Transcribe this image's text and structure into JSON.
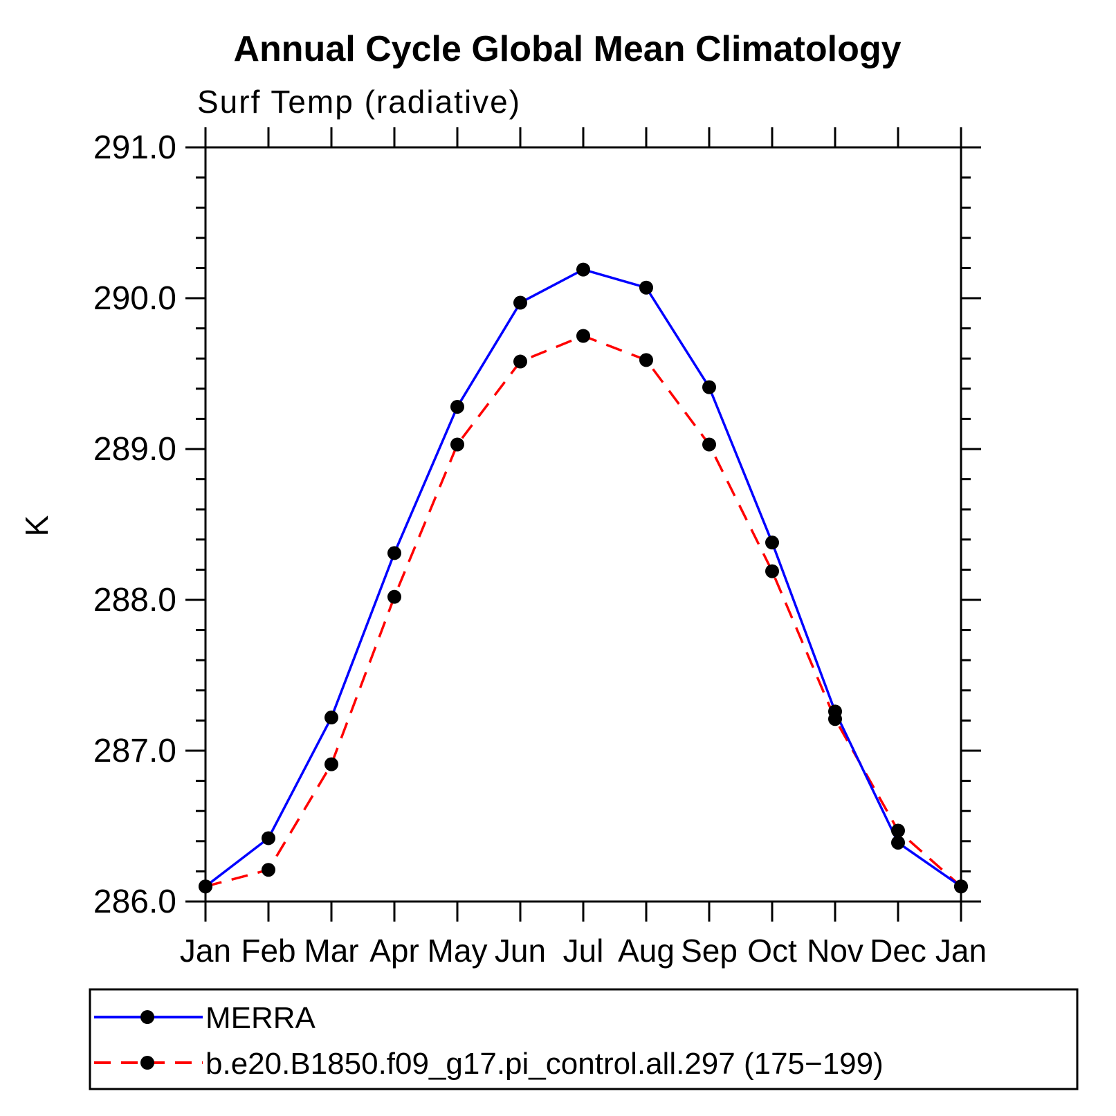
{
  "chart_data": {
    "type": "line",
    "title": "Annual Cycle Global Mean Climatology",
    "subtitle": "Surf Temp (radiative)",
    "ylabel": "K",
    "categories": [
      "Jan",
      "Feb",
      "Mar",
      "Apr",
      "May",
      "Jun",
      "Jul",
      "Aug",
      "Sep",
      "Oct",
      "Nov",
      "Dec",
      "Jan"
    ],
    "ylim": [
      286.0,
      291.0
    ],
    "y_major_ticks": [
      286.0,
      287.0,
      288.0,
      289.0,
      290.0,
      291.0
    ],
    "y_tick_labels": [
      "286.0",
      "287.0",
      "288.0",
      "289.0",
      "290.0",
      "291.0"
    ],
    "y_minor_step": 0.2,
    "grid": false,
    "legend_position": "bottom-left box",
    "series": [
      {
        "name": "MERRA",
        "color": "#0000ff",
        "style": "solid",
        "marker": "circle",
        "marker_color": "#000000",
        "values": [
          286.1,
          286.42,
          287.22,
          288.31,
          289.28,
          289.97,
          290.19,
          290.07,
          289.41,
          288.38,
          287.26,
          286.39,
          286.1
        ]
      },
      {
        "name": "b.e20.B1850.f09_g17.pi_control.all.297 (175−199)",
        "color": "#ff0000",
        "style": "dashed",
        "marker": "circle",
        "marker_color": "#000000",
        "values": [
          286.1,
          286.21,
          286.91,
          288.02,
          289.03,
          289.58,
          289.75,
          289.59,
          289.03,
          288.19,
          287.21,
          286.47,
          286.1
        ]
      }
    ]
  }
}
